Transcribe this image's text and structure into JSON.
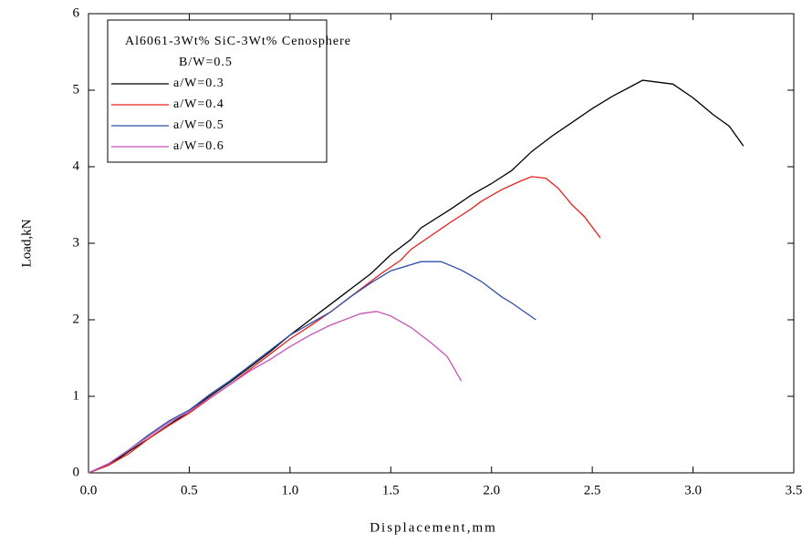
{
  "chart_data": {
    "type": "line",
    "x_label": "Displacement,mm",
    "y_label": "Load,kN",
    "legend_title": [
      "Al6061-3Wt% SiC-3Wt% Cenosphere",
      "B/W=0.5"
    ],
    "xlim": [
      0,
      3.5
    ],
    "ylim": [
      0,
      6
    ],
    "xticks": [
      {
        "value": 0,
        "label": "0.0"
      },
      0.5,
      {
        "value": 1,
        "label": "1.0"
      },
      1.5,
      {
        "value": 2,
        "label": "2.0"
      },
      2.5,
      {
        "value": 3,
        "label": "3.0"
      },
      3.5
    ],
    "yticks": [
      0,
      1,
      2,
      3,
      4,
      5,
      6
    ],
    "legend": "upper-left",
    "series": [
      {
        "name": "a/W=0.3",
        "color": "#000000",
        "x": [
          0,
          0.1,
          0.2,
          0.3,
          0.4,
          0.5,
          0.6,
          0.7,
          0.8,
          0.9,
          1.0,
          1.1,
          1.2,
          1.3,
          1.4,
          1.5,
          1.6,
          1.65,
          1.8,
          1.9,
          2.0,
          2.1,
          2.2,
          2.3,
          2.4,
          2.5,
          2.6,
          2.7,
          2.75,
          2.9,
          3.0,
          3.1,
          3.18,
          3.25
        ],
        "values": [
          0,
          0.1,
          0.28,
          0.45,
          0.63,
          0.8,
          1.0,
          1.18,
          1.38,
          1.58,
          1.8,
          2.0,
          2.2,
          2.4,
          2.6,
          2.85,
          3.05,
          3.2,
          3.45,
          3.63,
          3.78,
          3.95,
          4.2,
          4.4,
          4.58,
          4.76,
          4.92,
          5.06,
          5.13,
          5.08,
          4.9,
          4.68,
          4.53,
          4.27
        ]
      },
      {
        "name": "a/W=0.4",
        "color": "#e8201c",
        "x": [
          0,
          0.1,
          0.2,
          0.3,
          0.4,
          0.5,
          0.6,
          0.7,
          0.8,
          0.9,
          1.0,
          1.1,
          1.2,
          1.3,
          1.4,
          1.45,
          1.55,
          1.6,
          1.7,
          1.8,
          1.9,
          1.95,
          2.05,
          2.15,
          2.2,
          2.27,
          2.33,
          2.4,
          2.46,
          2.54
        ],
        "values": [
          0,
          0.1,
          0.25,
          0.45,
          0.62,
          0.78,
          0.97,
          1.15,
          1.35,
          1.55,
          1.75,
          1.92,
          2.1,
          2.3,
          2.5,
          2.6,
          2.78,
          2.92,
          3.1,
          3.28,
          3.45,
          3.55,
          3.7,
          3.82,
          3.87,
          3.85,
          3.72,
          3.5,
          3.35,
          3.07
        ]
      },
      {
        "name": "a/W=0.5",
        "color": "#2e4fa8",
        "x": [
          0,
          0.1,
          0.2,
          0.3,
          0.4,
          0.5,
          0.6,
          0.7,
          0.8,
          0.9,
          1.0,
          1.1,
          1.2,
          1.3,
          1.4,
          1.5,
          1.65,
          1.75,
          1.85,
          1.95,
          2.05,
          2.1,
          2.22
        ],
        "values": [
          0,
          0.12,
          0.3,
          0.5,
          0.68,
          0.82,
          1.02,
          1.2,
          1.4,
          1.6,
          1.8,
          1.95,
          2.1,
          2.3,
          2.48,
          2.64,
          2.76,
          2.76,
          2.65,
          2.5,
          2.3,
          2.22,
          2.0
        ]
      },
      {
        "name": "a/W=0.6",
        "color": "#c452b8",
        "x": [
          0,
          0.1,
          0.2,
          0.3,
          0.4,
          0.5,
          0.6,
          0.7,
          0.8,
          0.9,
          1.0,
          1.1,
          1.2,
          1.35,
          1.43,
          1.5,
          1.6,
          1.7,
          1.78,
          1.85
        ],
        "values": [
          0,
          0.12,
          0.3,
          0.48,
          0.66,
          0.8,
          0.98,
          1.15,
          1.33,
          1.48,
          1.65,
          1.8,
          1.93,
          2.08,
          2.11,
          2.05,
          1.9,
          1.7,
          1.52,
          1.2
        ]
      }
    ]
  }
}
